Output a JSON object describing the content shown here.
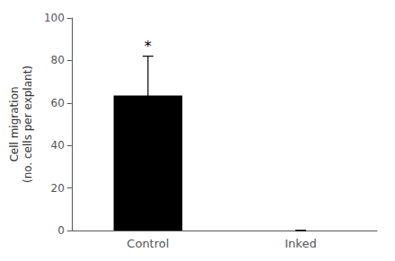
{
  "chart_data": {
    "type": "bar",
    "categories": [
      "Control",
      "Inked"
    ],
    "values": [
      63.5,
      0.0
    ],
    "color": "#000000",
    "errors": {
      "lower": [
        18.5,
        0.0
      ],
      "upper": [
        18.5,
        0.0
      ]
    },
    "ylabel": "Cell migration\n(no. cells per explant)",
    "ylim": [
      0,
      100
    ],
    "yticks": [
      0,
      20,
      40,
      60,
      80,
      100
    ],
    "annotations": [
      {
        "text": "*",
        "category": "Control"
      }
    ],
    "grid": false
  }
}
